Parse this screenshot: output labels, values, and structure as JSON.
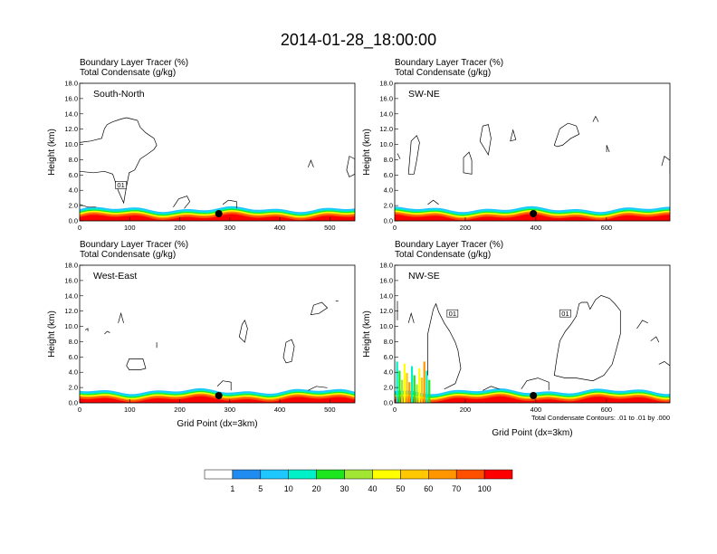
{
  "figure": {
    "title": "2014-01-28_18:00:00",
    "note": "Total Condensate Contours: .01 to .01 by .000"
  },
  "colorbar": {
    "colors": [
      "#ffffff",
      "#1e8cf0",
      "#1ec8ff",
      "#00f0c8",
      "#1ee61e",
      "#a0e632",
      "#ffff00",
      "#ffc800",
      "#ff9600",
      "#ff5000",
      "#ff0000"
    ],
    "labels": [
      "1",
      "5",
      "10",
      "20",
      "30",
      "40",
      "50",
      "60",
      "70",
      "100"
    ]
  },
  "chart_data": [
    {
      "type": "heatmap",
      "panel": "South-North",
      "header": [
        "Boundary Layer Tracer   (%)",
        "Total Condensate   (g/kg)"
      ],
      "xlabel": "",
      "ylabel": "Height (km)",
      "xlim": [
        0,
        550
      ],
      "ylim": [
        0,
        18
      ],
      "xticks": [
        "0",
        "100",
        "200",
        "300",
        "400",
        "500"
      ],
      "yticks": [
        "0.0",
        "2.0",
        "4.0",
        "6.0",
        "8.0",
        "10.0",
        "12.0",
        "14.0",
        "16.0",
        "18.0"
      ],
      "contour_label": "01",
      "marker_x": 278
    },
    {
      "type": "heatmap",
      "panel": "SW-NE",
      "header": [
        "Boundary Layer Tracer   (%)",
        "Total Condensate   (g/kg)"
      ],
      "xlabel": "",
      "ylabel": "Height (km)",
      "xlim": [
        0,
        780
      ],
      "ylim": [
        0,
        18
      ],
      "xticks": [
        "0",
        "200",
        "400",
        "600"
      ],
      "yticks": [
        "0.0",
        "2.0",
        "4.0",
        "6.0",
        "8.0",
        "10.0",
        "12.0",
        "14.0",
        "16.0",
        "18.0"
      ],
      "contour_label": "",
      "marker_x": 393
    },
    {
      "type": "heatmap",
      "panel": "West-East",
      "header": [
        "Boundary Layer Tracer   (%)",
        "Total Condensate   (g/kg)"
      ],
      "xlabel": "Grid Point (dx=3km)",
      "ylabel": "Height (km)",
      "xlim": [
        0,
        550
      ],
      "ylim": [
        0,
        18
      ],
      "xticks": [
        "0",
        "100",
        "200",
        "300",
        "400",
        "500"
      ],
      "yticks": [
        "0.0",
        "2.0",
        "4.0",
        "6.0",
        "8.0",
        "10.0",
        "12.0",
        "14.0",
        "16.0",
        "18.0"
      ],
      "contour_label": "",
      "marker_x": 278
    },
    {
      "type": "heatmap",
      "panel": "NW-SE",
      "header": [
        "Boundary Layer Tracer   (%)",
        "Total Condensate   (g/kg)"
      ],
      "xlabel": "Grid Point (dx=3km)",
      "ylabel": "Height (km)",
      "xlim": [
        0,
        780
      ],
      "ylim": [
        0,
        18
      ],
      "xticks": [
        "0",
        "200",
        "400",
        "600"
      ],
      "yticks": [
        "0.0",
        "2.0",
        "4.0",
        "6.0",
        "8.0",
        "10.0",
        "12.0",
        "14.0",
        "16.0",
        "18.0"
      ],
      "contour_label": "01",
      "marker_x": 393
    }
  ]
}
